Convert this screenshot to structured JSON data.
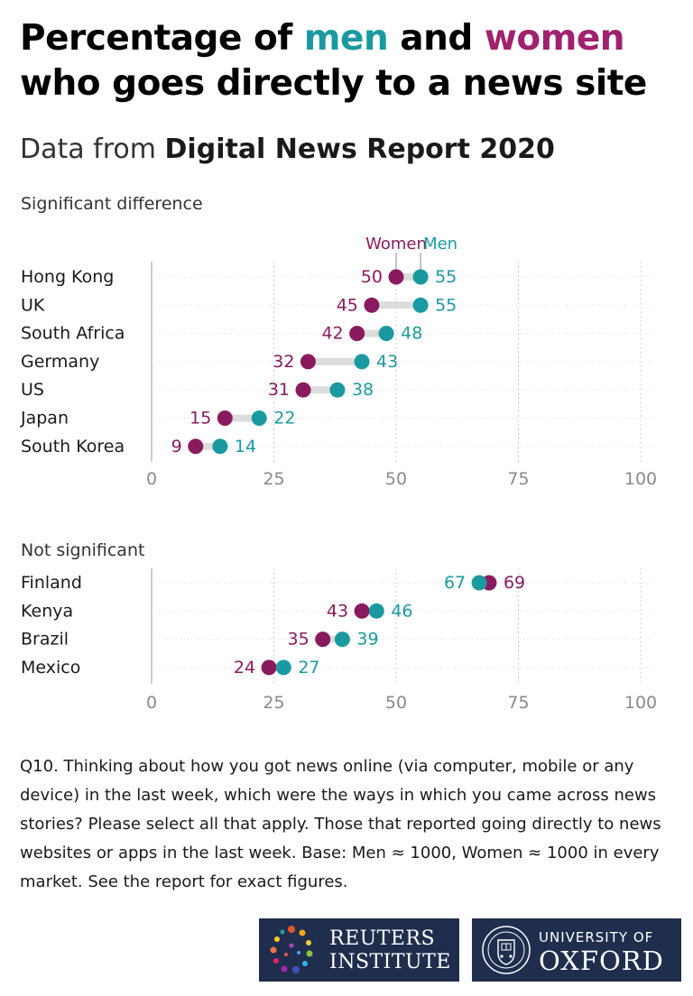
{
  "title": {
    "part1": "Percentage of ",
    "men": "men",
    "part2": " and ",
    "women": "women",
    "part3": "who goes directly to a news site"
  },
  "subtitle": {
    "prefix": "Data from ",
    "bold": "Digital News Report 2020"
  },
  "colors": {
    "men": "#1a9aa0",
    "women": "#8a1a5e",
    "connector": "#dcdcdc",
    "grid": "#cfcfcf",
    "tick": "#8a8a8a"
  },
  "chart_data": [
    {
      "type": "dumbbell",
      "panel_label": "Significant difference",
      "legend": {
        "women": "Women",
        "men": "Men"
      },
      "xlim": [
        0,
        100
      ],
      "x_ticks": [
        0,
        25,
        50,
        75,
        100
      ],
      "categories": [
        "Hong Kong",
        "UK",
        "South Africa",
        "Germany",
        "US",
        "Japan",
        "South Korea"
      ],
      "series": [
        {
          "name": "Women",
          "values": [
            50,
            45,
            42,
            32,
            31,
            15,
            9
          ]
        },
        {
          "name": "Men",
          "values": [
            55,
            55,
            48,
            43,
            38,
            22,
            14
          ]
        }
      ],
      "grid": true
    },
    {
      "type": "dumbbell",
      "panel_label": "Not significant",
      "xlim": [
        0,
        100
      ],
      "x_ticks": [
        0,
        25,
        50,
        75,
        100
      ],
      "categories": [
        "Finland",
        "Kenya",
        "Brazil",
        "Mexico"
      ],
      "series": [
        {
          "name": "Women",
          "values": [
            69,
            43,
            35,
            24
          ]
        },
        {
          "name": "Men",
          "values": [
            67,
            46,
            39,
            27
          ]
        }
      ],
      "grid": true
    }
  ],
  "footnote": "Q10. Thinking about how you got news online (via computer, mobile or any device) in the last week, which were the ways in which you came across news stories? Please select all that apply.  Those that reported going directly to news websites or apps in the last week. Base: Men ≈ 1000, Women ≈ 1000 in every market.  See the report for exact figures.",
  "logos": {
    "reuters": {
      "line1": "REUTERS",
      "line2": "INSTITUTE"
    },
    "oxford": {
      "line1": "UNIVERSITY OF",
      "line2": "OXFORD"
    }
  }
}
